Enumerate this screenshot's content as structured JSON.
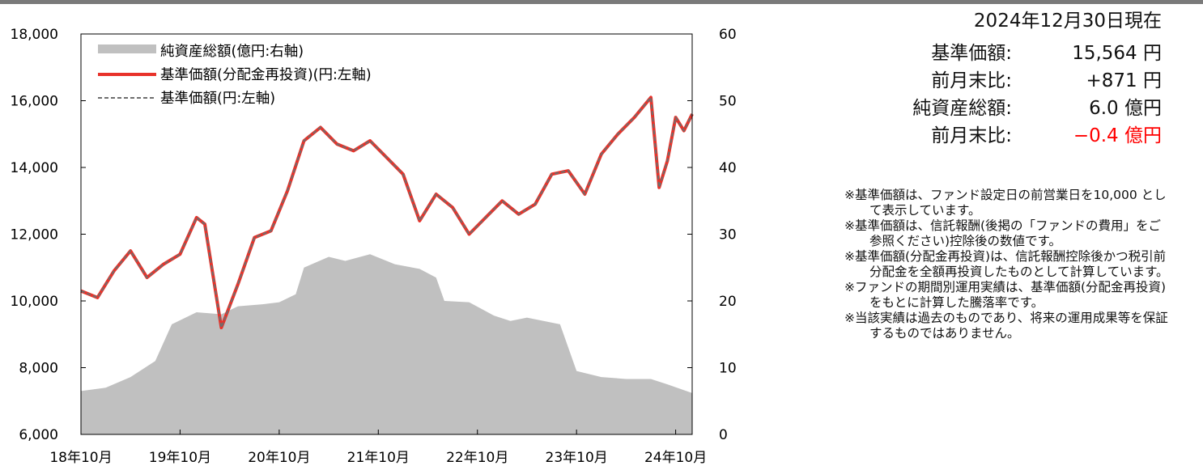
{
  "info": {
    "as_of": "2024年12月30日現在",
    "nav_label": "基準価額:",
    "nav_value": "15,564 円",
    "nav_change_label": "前月末比:",
    "nav_change_value": "+871 円",
    "assets_label": "純資産総額:",
    "assets_value": "6.0 億円",
    "assets_change_label": "前月末比:",
    "assets_change_value": "−0.4 億円"
  },
  "notes": [
    "※基準価額は、ファンド設定日の前営業日を10,000 として表示しています。",
    "※基準価額は、信託報酬(後掲の「ファンドの費用」をご参照ください)控除後の数値です。",
    "※基準価額(分配金再投資)は、信託報酬控除後かつ税引前分配金を全額再投資したものとして計算しています。",
    "※ファンドの期間別運用実績は、基準価額(分配金再投資)をもとに計算した騰落率です。",
    "※当該実績は過去のものであり、将来の運用成果等を保証するものではありません。"
  ],
  "colors": {
    "area": "#c0c0c0",
    "reinvested": "#e8322a",
    "nav": "#6e6e6e",
    "negative": "#ff0000"
  },
  "chart_data": {
    "type": "line",
    "x_start": "2018-10",
    "x_end": "2024-12",
    "xticks": [
      "18年10月",
      "19年10月",
      "20年10月",
      "21年10月",
      "22年10月",
      "23年10月",
      "24年10月"
    ],
    "y_left": {
      "range": [
        6000,
        18000
      ],
      "ticks": [
        "6,000",
        "8,000",
        "10,000",
        "12,000",
        "14,000",
        "16,000",
        "18,000"
      ]
    },
    "y_right": {
      "range": [
        0,
        60
      ],
      "ticks": [
        "0",
        "10",
        "20",
        "30",
        "40",
        "50",
        "60"
      ]
    },
    "legend_position": "top-left",
    "series": [
      {
        "name": "純資産総額(億円:右軸)",
        "type": "area",
        "axis": "right",
        "points": [
          [
            "2018-10",
            6.5
          ],
          [
            "2019-01",
            7.0
          ],
          [
            "2019-04",
            8.6
          ],
          [
            "2019-07",
            11.0
          ],
          [
            "2019-09",
            16.5
          ],
          [
            "2019-12",
            18.3
          ],
          [
            "2020-03",
            18.0
          ],
          [
            "2020-05",
            19.2
          ],
          [
            "2020-08",
            19.5
          ],
          [
            "2020-10",
            19.8
          ],
          [
            "2020-12",
            21.0
          ],
          [
            "2021-01",
            25.0
          ],
          [
            "2021-04",
            26.6
          ],
          [
            "2021-06",
            26.0
          ],
          [
            "2021-09",
            27.0
          ],
          [
            "2021-12",
            25.5
          ],
          [
            "2022-03",
            24.8
          ],
          [
            "2022-05",
            23.5
          ],
          [
            "2022-06",
            20.0
          ],
          [
            "2022-09",
            19.8
          ],
          [
            "2022-12",
            17.8
          ],
          [
            "2023-02",
            17.0
          ],
          [
            "2023-04",
            17.5
          ],
          [
            "2023-06",
            17.0
          ],
          [
            "2023-08",
            16.5
          ],
          [
            "2023-10",
            9.5
          ],
          [
            "2024-01",
            8.6
          ],
          [
            "2024-04",
            8.3
          ],
          [
            "2024-07",
            8.3
          ],
          [
            "2024-09",
            7.5
          ],
          [
            "2024-12",
            6.2
          ]
        ]
      },
      {
        "name": "基準価額(分配金再投資)(円:左軸)",
        "type": "line",
        "axis": "left",
        "points": [
          [
            "2018-10",
            10300
          ],
          [
            "2018-12",
            10100
          ],
          [
            "2019-02",
            10900
          ],
          [
            "2019-04",
            11500
          ],
          [
            "2019-06",
            10700
          ],
          [
            "2019-08",
            11100
          ],
          [
            "2019-10",
            11400
          ],
          [
            "2019-12",
            12500
          ],
          [
            "2020-01",
            12300
          ],
          [
            "2020-03",
            9200
          ],
          [
            "2020-05",
            10500
          ],
          [
            "2020-07",
            11900
          ],
          [
            "2020-09",
            12100
          ],
          [
            "2020-11",
            13300
          ],
          [
            "2021-01",
            14800
          ],
          [
            "2021-03",
            15200
          ],
          [
            "2021-05",
            14700
          ],
          [
            "2021-07",
            14500
          ],
          [
            "2021-09",
            14800
          ],
          [
            "2021-11",
            14300
          ],
          [
            "2022-01",
            13800
          ],
          [
            "2022-03",
            12400
          ],
          [
            "2022-05",
            13200
          ],
          [
            "2022-07",
            12800
          ],
          [
            "2022-09",
            12000
          ],
          [
            "2022-11",
            12500
          ],
          [
            "2023-01",
            13000
          ],
          [
            "2023-03",
            12600
          ],
          [
            "2023-05",
            12900
          ],
          [
            "2023-07",
            13800
          ],
          [
            "2023-09",
            13900
          ],
          [
            "2023-11",
            13200
          ],
          [
            "2024-01",
            14400
          ],
          [
            "2024-03",
            15000
          ],
          [
            "2024-05",
            15500
          ],
          [
            "2024-07",
            16100
          ],
          [
            "2024-08",
            13400
          ],
          [
            "2024-09",
            14200
          ],
          [
            "2024-10",
            15500
          ],
          [
            "2024-11",
            15100
          ],
          [
            "2024-12",
            15600
          ]
        ]
      },
      {
        "name": "基準価額(円:左軸)",
        "type": "line",
        "axis": "left",
        "points": [
          [
            "2018-10",
            10300
          ],
          [
            "2018-12",
            10100
          ],
          [
            "2019-02",
            10900
          ],
          [
            "2019-04",
            11500
          ],
          [
            "2019-06",
            10700
          ],
          [
            "2019-08",
            11100
          ],
          [
            "2019-10",
            11400
          ],
          [
            "2019-12",
            12500
          ],
          [
            "2020-01",
            12300
          ],
          [
            "2020-03",
            9200
          ],
          [
            "2020-05",
            10500
          ],
          [
            "2020-07",
            11900
          ],
          [
            "2020-09",
            12100
          ],
          [
            "2020-11",
            13300
          ],
          [
            "2021-01",
            14800
          ],
          [
            "2021-03",
            15200
          ],
          [
            "2021-05",
            14700
          ],
          [
            "2021-07",
            14500
          ],
          [
            "2021-09",
            14800
          ],
          [
            "2021-11",
            14300
          ],
          [
            "2022-01",
            13800
          ],
          [
            "2022-03",
            12400
          ],
          [
            "2022-05",
            13200
          ],
          [
            "2022-07",
            12800
          ],
          [
            "2022-09",
            12000
          ],
          [
            "2022-11",
            12500
          ],
          [
            "2023-01",
            13000
          ],
          [
            "2023-03",
            12600
          ],
          [
            "2023-05",
            12900
          ],
          [
            "2023-07",
            13800
          ],
          [
            "2023-09",
            13900
          ],
          [
            "2023-11",
            13200
          ],
          [
            "2024-01",
            14400
          ],
          [
            "2024-03",
            15000
          ],
          [
            "2024-05",
            15500
          ],
          [
            "2024-07",
            16100
          ],
          [
            "2024-08",
            13400
          ],
          [
            "2024-09",
            14200
          ],
          [
            "2024-10",
            15500
          ],
          [
            "2024-11",
            15100
          ],
          [
            "2024-12",
            15600
          ]
        ]
      }
    ]
  }
}
